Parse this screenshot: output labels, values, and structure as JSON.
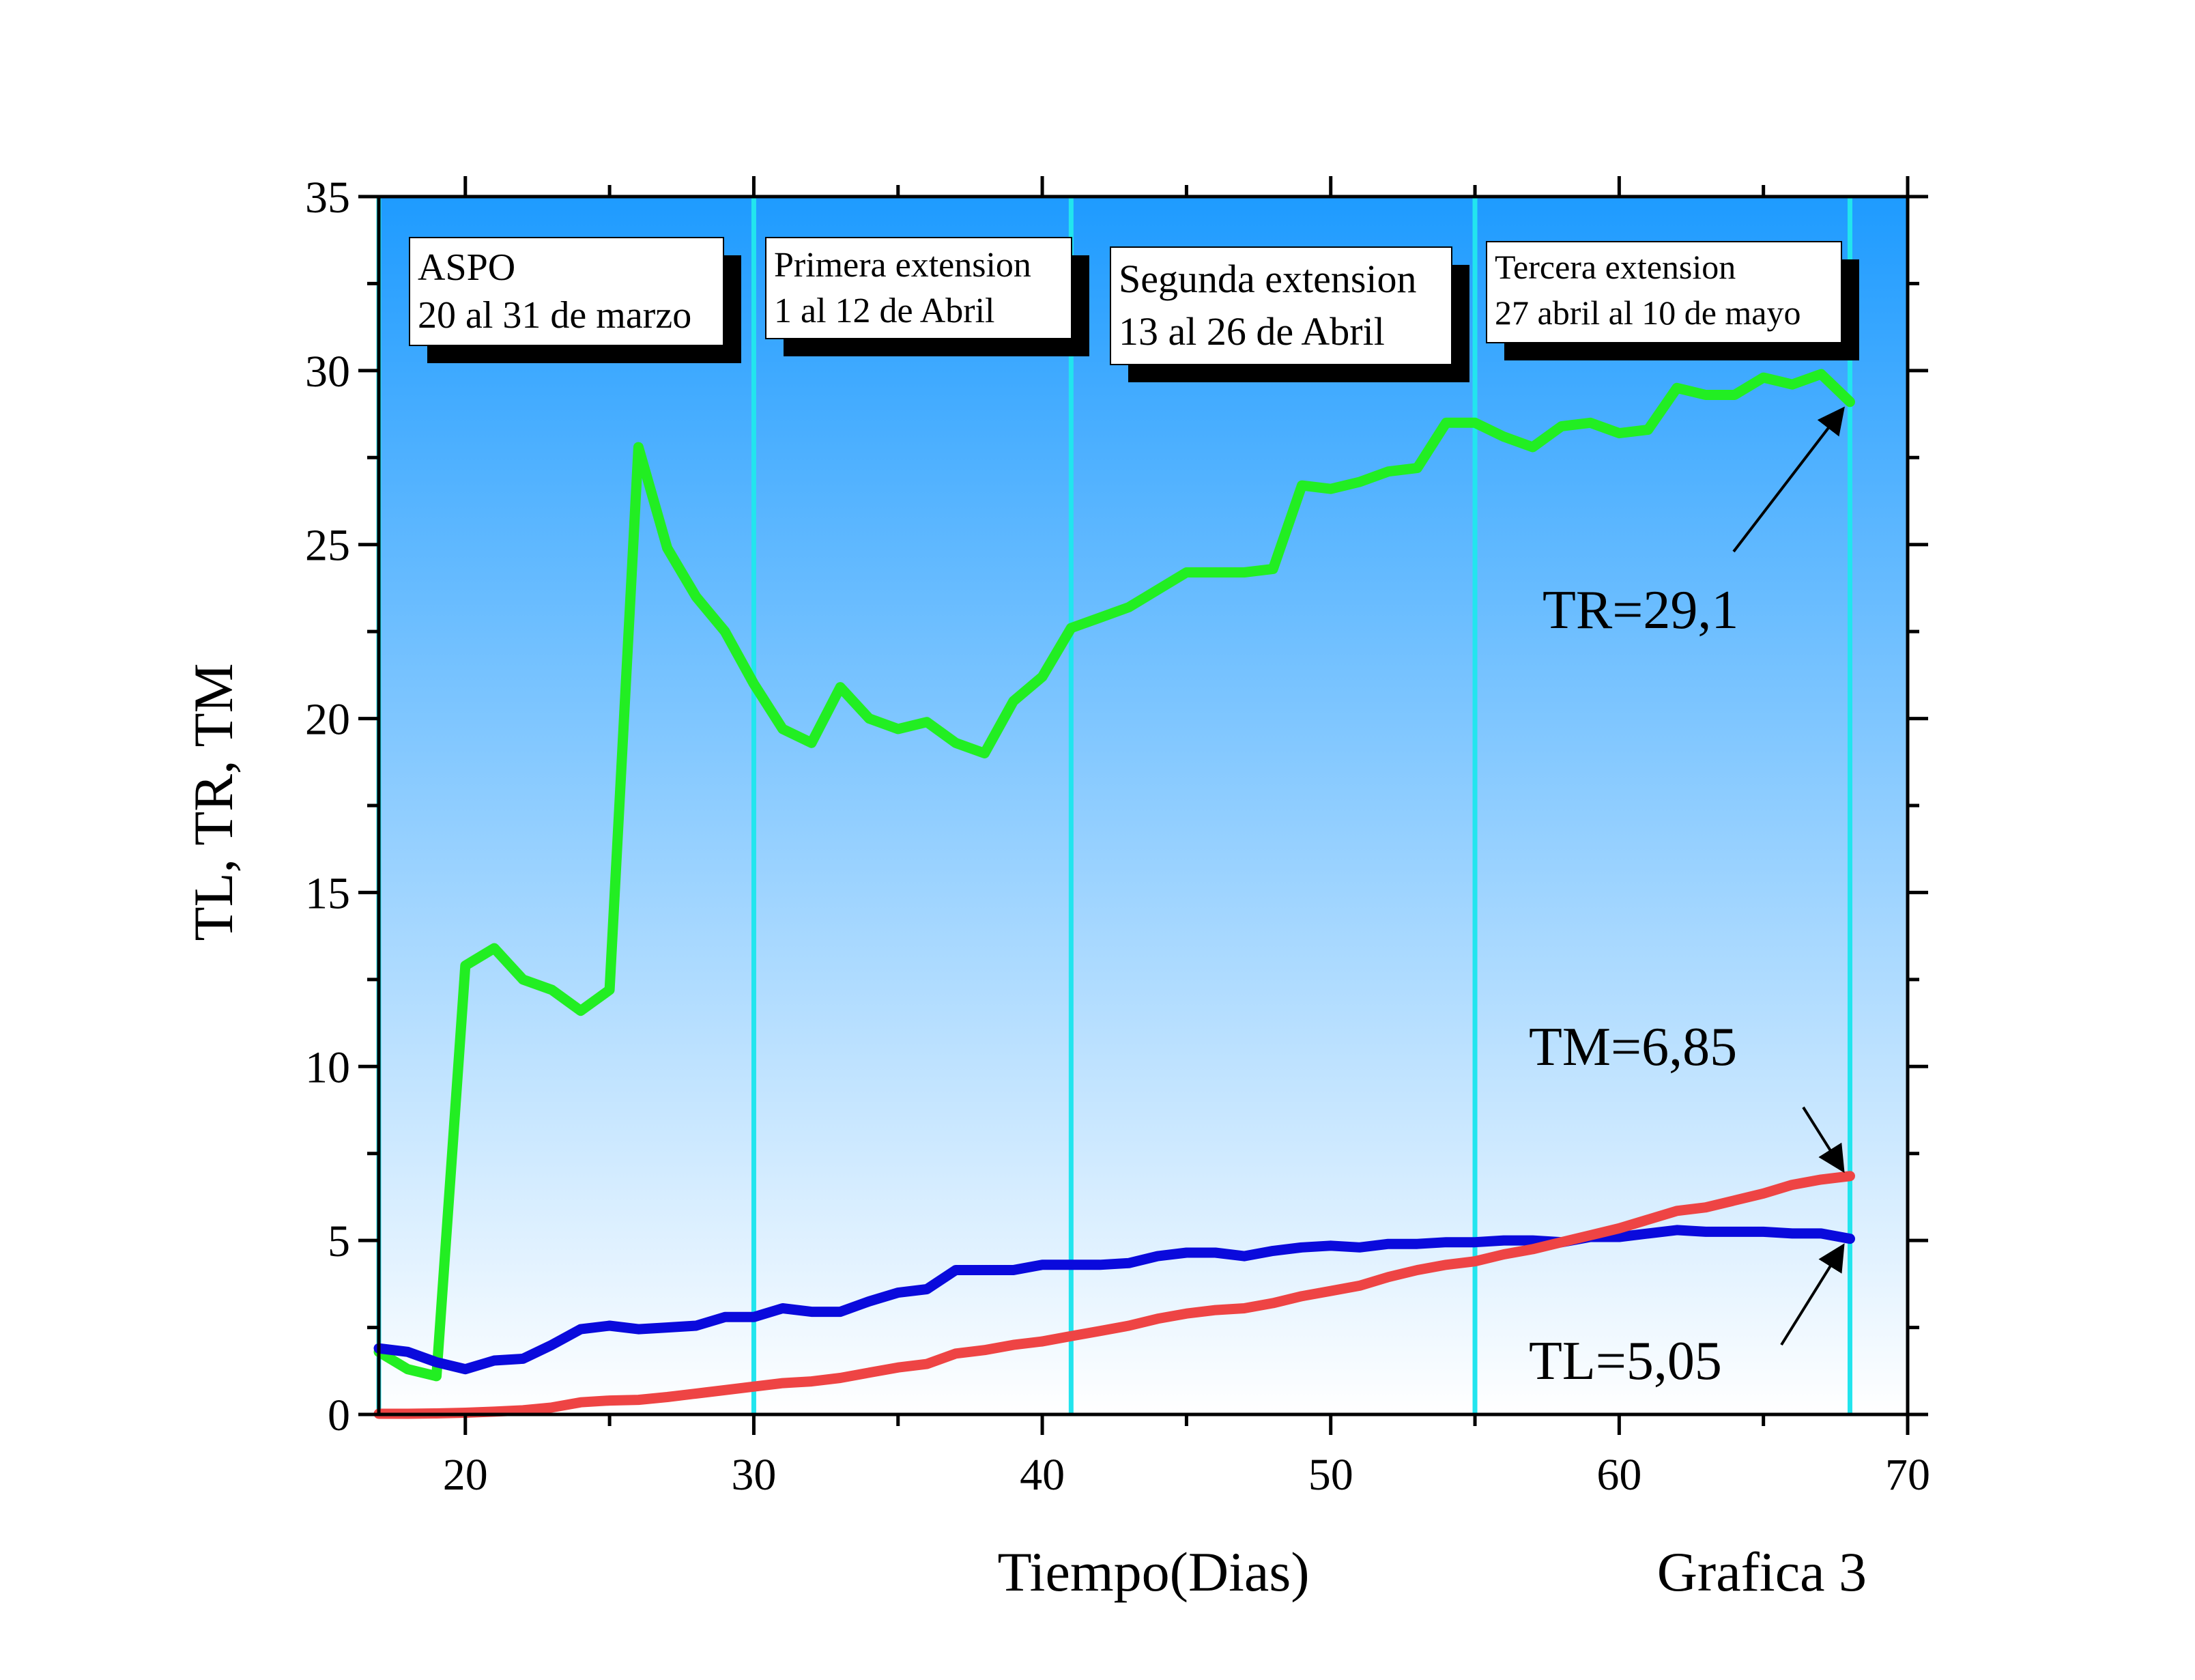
{
  "chart_data": {
    "type": "line",
    "xlabel": "Tiempo(Dias)",
    "ylabel": "TL, TR, TM",
    "caption": "Grafica 3",
    "xlim": [
      17,
      70
    ],
    "ylim": [
      0,
      35
    ],
    "xticks": [
      20,
      30,
      40,
      50,
      60,
      70
    ],
    "yticks": [
      0,
      5,
      10,
      15,
      20,
      25,
      30,
      35
    ],
    "grid": false,
    "background_gradient": [
      "#1e9bff",
      "#ffffff"
    ],
    "phase_line_color": "#22e5ee",
    "phase_lines": [
      17,
      30,
      41,
      55,
      68
    ],
    "phases": [
      {
        "name": "ASPO",
        "dates": "20 al 31 de marzo"
      },
      {
        "name": "Primera extension",
        "dates": "1 al 12 de Abril"
      },
      {
        "name": "Segunda extension",
        "dates": "13 al 26 de Abril"
      },
      {
        "name": "Tercera extension",
        "dates": "27 abril al 10 de mayo"
      }
    ],
    "annotations": [
      {
        "text": "TR=29,1",
        "series": "TR",
        "x": 68,
        "y": 29.1
      },
      {
        "text": "TM=6,85",
        "series": "TM",
        "x": 68,
        "y": 6.85
      },
      {
        "text": "TL=5,05",
        "series": "TL",
        "x": 68,
        "y": 5.05
      }
    ],
    "series": [
      {
        "key": "TR",
        "color": "#22ee22",
        "x": [
          17,
          18,
          19,
          20,
          21,
          22,
          23,
          24,
          25,
          26,
          27,
          28,
          29,
          30,
          31,
          32,
          33,
          34,
          35,
          36,
          37,
          38,
          39,
          40,
          41,
          42,
          43,
          44,
          45,
          46,
          47,
          48,
          49,
          50,
          51,
          52,
          53,
          54,
          55,
          56,
          57,
          58,
          59,
          60,
          61,
          62,
          63,
          64,
          65,
          66,
          67,
          68
        ],
        "y": [
          1.8,
          1.3,
          1.1,
          12.9,
          13.4,
          12.5,
          12.2,
          11.6,
          12.2,
          27.8,
          24.9,
          23.5,
          22.5,
          21.0,
          19.7,
          19.3,
          20.9,
          20.0,
          19.7,
          19.9,
          19.3,
          19.0,
          20.5,
          21.2,
          22.6,
          22.9,
          23.2,
          23.7,
          24.2,
          24.2,
          24.2,
          24.3,
          26.7,
          26.6,
          26.8,
          27.1,
          27.2,
          28.5,
          28.5,
          28.1,
          27.8,
          28.4,
          28.5,
          28.2,
          28.3,
          29.5,
          29.3,
          29.3,
          29.8,
          29.6,
          29.9,
          29.1
        ]
      },
      {
        "key": "TL",
        "color": "#0a0adc",
        "x": [
          17,
          18,
          19,
          20,
          21,
          22,
          23,
          24,
          25,
          26,
          27,
          28,
          29,
          30,
          31,
          32,
          33,
          34,
          35,
          36,
          37,
          38,
          39,
          40,
          41,
          42,
          43,
          44,
          45,
          46,
          47,
          48,
          49,
          50,
          51,
          52,
          53,
          54,
          55,
          56,
          57,
          58,
          59,
          60,
          61,
          62,
          63,
          64,
          65,
          66,
          67,
          68
        ],
        "y": [
          1.9,
          1.8,
          1.5,
          1.3,
          1.55,
          1.6,
          2.0,
          2.45,
          2.55,
          2.45,
          2.5,
          2.55,
          2.8,
          2.8,
          3.05,
          2.95,
          2.95,
          3.25,
          3.5,
          3.6,
          4.15,
          4.15,
          4.15,
          4.3,
          4.3,
          4.3,
          4.35,
          4.55,
          4.65,
          4.65,
          4.55,
          4.7,
          4.8,
          4.85,
          4.8,
          4.9,
          4.9,
          4.95,
          4.95,
          5.0,
          5.0,
          4.95,
          5.1,
          5.1,
          5.2,
          5.3,
          5.25,
          5.25,
          5.25,
          5.2,
          5.2,
          5.05
        ]
      },
      {
        "key": "TM",
        "color": "#ee4444",
        "x": [
          17,
          18,
          19,
          20,
          21,
          22,
          23,
          24,
          25,
          26,
          27,
          28,
          29,
          30,
          31,
          32,
          33,
          34,
          35,
          36,
          37,
          38,
          39,
          40,
          41,
          42,
          43,
          44,
          45,
          46,
          47,
          48,
          49,
          50,
          51,
          52,
          53,
          54,
          55,
          56,
          57,
          58,
          59,
          60,
          61,
          62,
          63,
          64,
          65,
          66,
          67,
          68
        ],
        "y": [
          0.02,
          0.02,
          0.03,
          0.05,
          0.08,
          0.12,
          0.2,
          0.35,
          0.4,
          0.42,
          0.5,
          0.6,
          0.7,
          0.8,
          0.9,
          0.95,
          1.05,
          1.2,
          1.35,
          1.45,
          1.75,
          1.85,
          2.0,
          2.1,
          2.25,
          2.4,
          2.55,
          2.75,
          2.9,
          3.0,
          3.05,
          3.2,
          3.4,
          3.55,
          3.7,
          3.95,
          4.15,
          4.3,
          4.4,
          4.6,
          4.75,
          4.95,
          5.15,
          5.35,
          5.6,
          5.85,
          5.95,
          6.15,
          6.35,
          6.6,
          6.75,
          6.85
        ]
      }
    ]
  }
}
